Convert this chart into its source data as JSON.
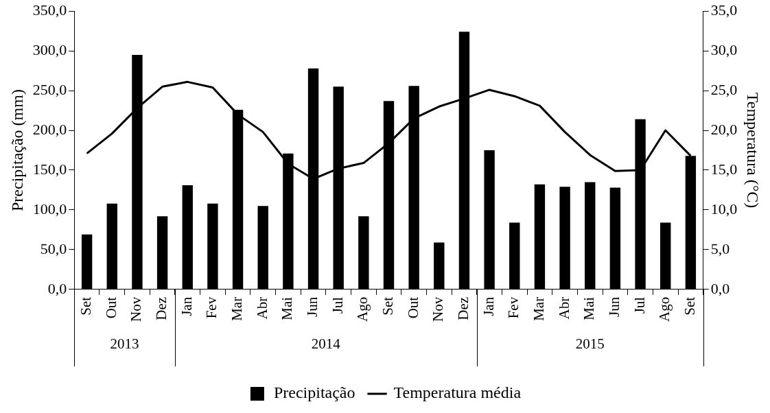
{
  "chart_data": {
    "type": "bar",
    "ylabel": "Precipitação (mm)",
    "y2label": "Temperatura (°C)",
    "categories": [
      "Set",
      "Out",
      "Nov",
      "Dez",
      "Jan",
      "Fev",
      "Mar",
      "Abr",
      "Mai",
      "Jun",
      "Jul",
      "Ago",
      "Set",
      "Out",
      "Nov",
      "Dez",
      "Jan",
      "Fev",
      "Mar",
      "Abr",
      "Mai",
      "Jun",
      "Jul",
      "Ago",
      "Set"
    ],
    "series": [
      {
        "name": "Precipitação",
        "color": "#000000",
        "values": [
          69,
          108,
          295,
          92,
          131,
          108,
          226,
          105,
          171,
          278,
          255,
          92,
          237,
          256,
          59,
          324,
          175,
          84,
          132,
          129,
          135,
          128,
          214,
          84,
          168
        ]
      },
      {
        "name": "Temperatura média",
        "type": "line",
        "axis": "y2",
        "color": "#000000",
        "values": [
          17.1,
          19.6,
          22.8,
          25.5,
          26.1,
          25.4,
          22.0,
          19.8,
          15.8,
          13.9,
          15.2,
          15.9,
          18.4,
          21.5,
          23.0,
          24.0,
          25.1,
          24.3,
          23.1,
          19.8,
          16.9,
          14.9,
          15.0,
          20.0,
          16.8
        ]
      }
    ],
    "ylim": [
      0,
      350
    ],
    "yticks": [
      {
        "value": 0,
        "label": "0,0"
      },
      {
        "value": 50,
        "label": "50,0"
      },
      {
        "value": 100,
        "label": "100,0"
      },
      {
        "value": 150,
        "label": "150,0"
      },
      {
        "value": 200,
        "label": "200,0"
      },
      {
        "value": 250,
        "label": "250,0"
      },
      {
        "value": 300,
        "label": "300,0"
      },
      {
        "value": 350,
        "label": "350,0"
      }
    ],
    "y2lim": [
      0,
      35
    ],
    "y2ticks": [
      {
        "value": 0,
        "label": "0,0"
      },
      {
        "value": 5,
        "label": "5,0"
      },
      {
        "value": 10,
        "label": "10,0"
      },
      {
        "value": 15,
        "label": "15,0"
      },
      {
        "value": 20,
        "label": "20,0"
      },
      {
        "value": 25,
        "label": "25,0"
      },
      {
        "value": 30,
        "label": "30,0"
      },
      {
        "value": 35,
        "label": "35,0"
      }
    ],
    "annotations": [
      "2013",
      "2014",
      "2015"
    ],
    "grid": false,
    "legend": "bottom",
    "marker": "none",
    "line_style": "solid"
  }
}
